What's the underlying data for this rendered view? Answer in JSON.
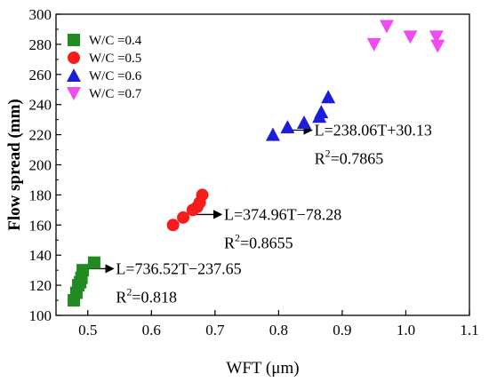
{
  "chart_data": {
    "type": "scatter",
    "xlabel": "WFT (μm)",
    "ylabel": "Flow spread (mm)",
    "xlim": [
      0.45,
      1.1
    ],
    "ylim": [
      100,
      300
    ],
    "x_ticks": [
      0.5,
      0.6,
      0.7,
      0.8,
      0.9,
      1.0,
      1.1
    ],
    "x_tick_labels": [
      "0.5",
      "0.6",
      "0.7",
      "0.8",
      "0.9",
      "1.0",
      "1.1"
    ],
    "y_ticks": [
      100,
      120,
      140,
      160,
      180,
      200,
      220,
      240,
      260,
      280,
      300
    ],
    "y_tick_labels": [
      "100",
      "120",
      "140",
      "160",
      "180",
      "200",
      "220",
      "240",
      "260",
      "280",
      "300"
    ],
    "grid": false,
    "legend_position": "top-left",
    "series": [
      {
        "name": "W/C =0.4",
        "marker": "square",
        "color": "#218a21",
        "x": [
          0.478,
          0.482,
          0.485,
          0.488,
          0.49,
          0.492,
          0.51
        ],
        "y": [
          110,
          115,
          120,
          122,
          125,
          130,
          135
        ]
      },
      {
        "name": "W/C =0.5",
        "marker": "circle",
        "color": "#f51c1c",
        "x": [
          0.634,
          0.65,
          0.665,
          0.672,
          0.676,
          0.68
        ],
        "y": [
          160,
          165,
          170,
          172,
          175,
          180
        ]
      },
      {
        "name": "W/C =0.6",
        "marker": "triangle-up",
        "color": "#1c1cdb",
        "x": [
          0.791,
          0.814,
          0.84,
          0.864,
          0.867,
          0.878
        ],
        "y": [
          220,
          225,
          228,
          232,
          235,
          245
        ]
      },
      {
        "name": "W/C =0.7",
        "marker": "triangle-down",
        "color": "#f04af0",
        "x": [
          0.95,
          0.97,
          1.007,
          1.048,
          1.05
        ],
        "y": [
          280,
          292,
          285,
          285,
          279
        ]
      }
    ],
    "annotations": [
      {
        "equation": "L=736.52T−237.65",
        "r2_prefix": "R",
        "r2_exp": "2",
        "r2_value": "=0.818",
        "arrow_from": [
          0.5,
          131
        ],
        "arrow_to": [
          0.54,
          131
        ]
      },
      {
        "equation": "L=374.96T−78.28",
        "r2_prefix": "R",
        "r2_exp": "2",
        "r2_value": "=0.8655",
        "arrow_from": [
          0.668,
          167
        ],
        "arrow_to": [
          0.71,
          167
        ]
      },
      {
        "equation": "L=238.06T+30.13",
        "r2_prefix": "R",
        "r2_exp": "2",
        "r2_value": "=0.7865",
        "arrow_from": [
          0.81,
          223
        ],
        "arrow_to": [
          0.852,
          223
        ]
      }
    ]
  }
}
